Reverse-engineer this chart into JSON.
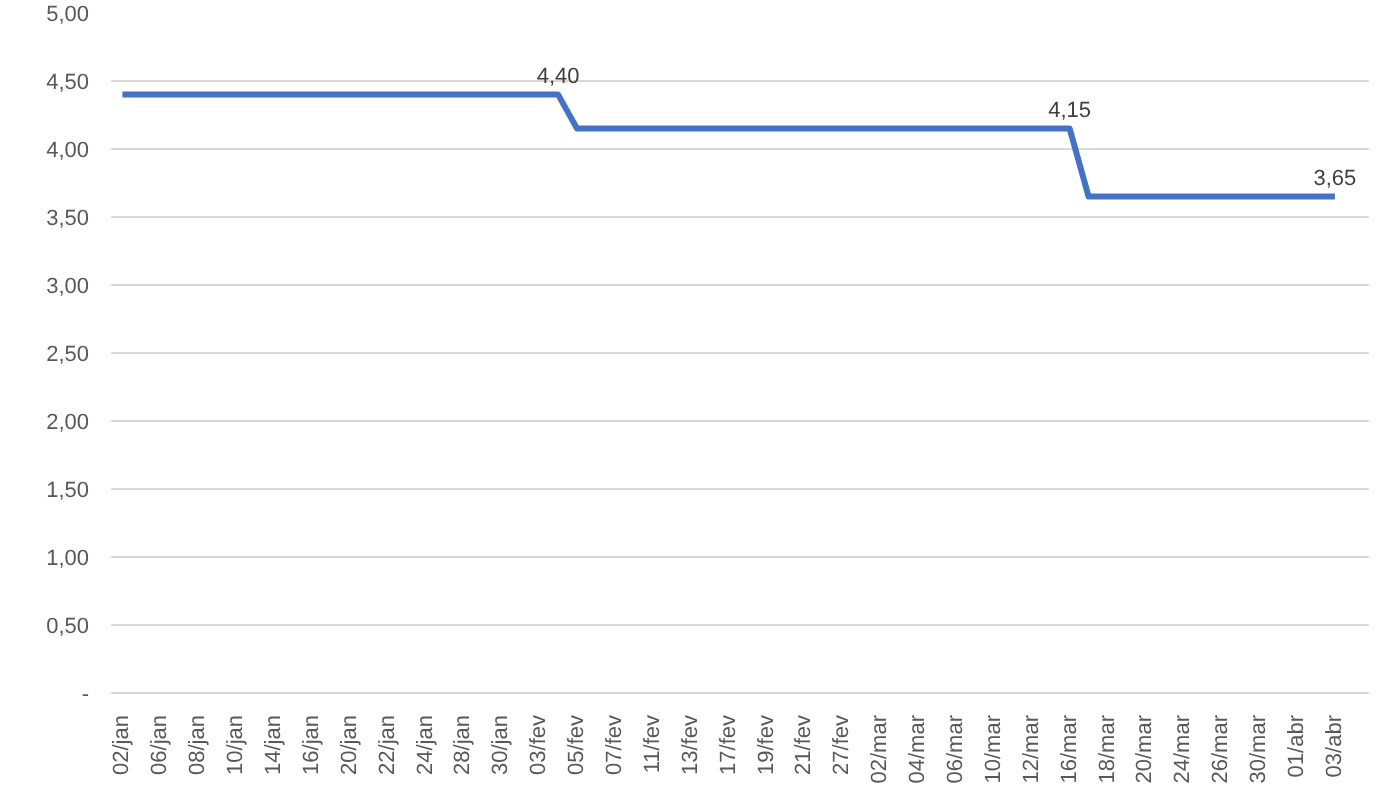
{
  "chart_data": {
    "type": "line",
    "categories": [
      "02/jan",
      null,
      "06/jan",
      null,
      "08/jan",
      null,
      "10/jan",
      null,
      "14/jan",
      null,
      "16/jan",
      null,
      "20/jan",
      null,
      "22/jan",
      null,
      "24/jan",
      null,
      "28/jan",
      null,
      "30/jan",
      null,
      "03/fev",
      null,
      "05/fev",
      null,
      "07/fev",
      null,
      "11/fev",
      null,
      "13/fev",
      null,
      "17/fev",
      null,
      "19/fev",
      null,
      "21/fev",
      null,
      "27/fev",
      null,
      "02/mar",
      null,
      "04/mar",
      null,
      "06/mar",
      null,
      "10/mar",
      null,
      "12/mar",
      null,
      "16/mar",
      null,
      "18/mar",
      null,
      "20/mar",
      null,
      "24/mar",
      null,
      "26/mar",
      null,
      "30/mar",
      null,
      "01/abr",
      null,
      "03/abr"
    ],
    "series": [
      {
        "color": "#4472c4",
        "values": [
          4.4,
          4.4,
          4.4,
          4.4,
          4.4,
          4.4,
          4.4,
          4.4,
          4.4,
          4.4,
          4.4,
          4.4,
          4.4,
          4.4,
          4.4,
          4.4,
          4.4,
          4.4,
          4.4,
          4.4,
          4.4,
          4.4,
          4.4,
          4.4,
          4.15,
          4.15,
          4.15,
          4.15,
          4.15,
          4.15,
          4.15,
          4.15,
          4.15,
          4.15,
          4.15,
          4.15,
          4.15,
          4.15,
          4.15,
          4.15,
          4.15,
          4.15,
          4.15,
          4.15,
          4.15,
          4.15,
          4.15,
          4.15,
          4.15,
          4.15,
          4.15,
          3.65,
          3.65,
          3.65,
          3.65,
          3.65,
          3.65,
          3.65,
          3.65,
          3.65,
          3.65,
          3.65,
          3.65,
          3.65,
          3.65
        ],
        "value_labels": [
          null,
          null,
          null,
          null,
          null,
          null,
          null,
          null,
          null,
          null,
          null,
          null,
          null,
          null,
          null,
          null,
          null,
          null,
          null,
          null,
          null,
          null,
          null,
          "4,40",
          null,
          null,
          null,
          null,
          null,
          null,
          null,
          null,
          null,
          null,
          null,
          null,
          null,
          null,
          null,
          null,
          null,
          null,
          null,
          null,
          null,
          null,
          null,
          null,
          null,
          null,
          "4,15",
          null,
          null,
          null,
          null,
          null,
          null,
          null,
          null,
          null,
          null,
          null,
          null,
          null,
          "3,65"
        ]
      }
    ],
    "ylim": [
      0,
      5
    ],
    "yticks": [
      {
        "value": 0,
        "label": "-"
      },
      {
        "value": 0.5,
        "label": "0,50"
      },
      {
        "value": 1,
        "label": "1,00"
      },
      {
        "value": 1.5,
        "label": "1,50"
      },
      {
        "value": 2,
        "label": "2,00"
      },
      {
        "value": 2.5,
        "label": "2,50"
      },
      {
        "value": 3,
        "label": "3,00"
      },
      {
        "value": 3.5,
        "label": "3,50"
      },
      {
        "value": 4,
        "label": "4,00"
      },
      {
        "value": 4.5,
        "label": "4,50"
      },
      {
        "value": 5,
        "label": "5,00"
      }
    ],
    "grid": "y",
    "marker": "none",
    "line_style": "solid"
  }
}
